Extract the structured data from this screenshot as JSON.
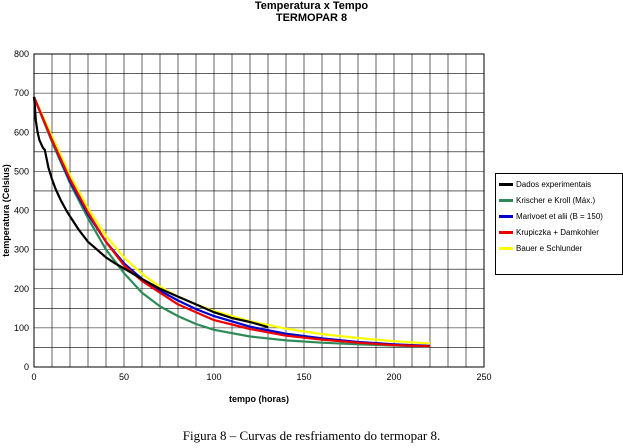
{
  "chart_data": {
    "type": "line",
    "title": "Temperatura x Tempo",
    "subtitle": "TERMOPAR 8",
    "xlabel": "tempo (horas)",
    "ylabel": "temperatura (Celsius)",
    "xlim": [
      0,
      250
    ],
    "ylim": [
      0,
      800
    ],
    "xticks": [
      0,
      50,
      100,
      150,
      200,
      250
    ],
    "yticks": [
      0,
      100,
      200,
      300,
      400,
      500,
      600,
      700,
      800
    ],
    "grid": true,
    "legend_position": "right",
    "series": [
      {
        "name": "Dados experimentais",
        "color": "#000000",
        "x": [
          0,
          0.5,
          1,
          2,
          3,
          4,
          5,
          6,
          8,
          10,
          12,
          15,
          18,
          20,
          25,
          30,
          35,
          40,
          45,
          50,
          60,
          70,
          80,
          90,
          100,
          110,
          120,
          130
        ],
        "y": [
          690,
          665,
          630,
          600,
          580,
          570,
          560,
          555,
          510,
          480,
          455,
          425,
          400,
          385,
          350,
          320,
          300,
          280,
          265,
          252,
          225,
          200,
          180,
          160,
          140,
          125,
          115,
          102
        ]
      },
      {
        "name": "Krischer e Kroll (Máx.)",
        "color": "#2e8b57",
        "x": [
          0,
          10,
          20,
          30,
          40,
          50,
          60,
          70,
          80,
          90,
          100,
          120,
          140,
          160,
          180,
          200,
          220
        ],
        "y": [
          690,
          575,
          470,
          380,
          300,
          240,
          190,
          155,
          130,
          110,
          95,
          78,
          68,
          62,
          58,
          55,
          52
        ]
      },
      {
        "name": "Marivoet et alii (B = 150)",
        "color": "#0000cc",
        "x": [
          0,
          10,
          20,
          30,
          40,
          50,
          60,
          70,
          80,
          90,
          100,
          120,
          140,
          160,
          180,
          200,
          220
        ],
        "y": [
          690,
          580,
          475,
          390,
          320,
          265,
          225,
          195,
          170,
          148,
          130,
          103,
          85,
          73,
          64,
          58,
          54
        ]
      },
      {
        "name": "Krupiczka + Damkohler",
        "color": "#ee0000",
        "x": [
          0,
          10,
          20,
          30,
          40,
          50,
          60,
          70,
          80,
          90,
          100,
          120,
          140,
          160,
          180,
          200,
          220
        ],
        "y": [
          690,
          580,
          480,
          395,
          320,
          260,
          220,
          190,
          160,
          140,
          120,
          97,
          80,
          70,
          62,
          56,
          53
        ]
      },
      {
        "name": "Bauer e Schlunder",
        "color": "#ffff00",
        "x": [
          0,
          10,
          20,
          30,
          40,
          50,
          60,
          70,
          80,
          90,
          100,
          120,
          140,
          160,
          180,
          200,
          220
        ],
        "y": [
          690,
          590,
          490,
          405,
          335,
          280,
          238,
          205,
          180,
          160,
          143,
          117,
          98,
          84,
          74,
          66,
          60
        ]
      }
    ]
  },
  "caption": "Figura 8 – Curvas de resfriamento do termopar 8."
}
